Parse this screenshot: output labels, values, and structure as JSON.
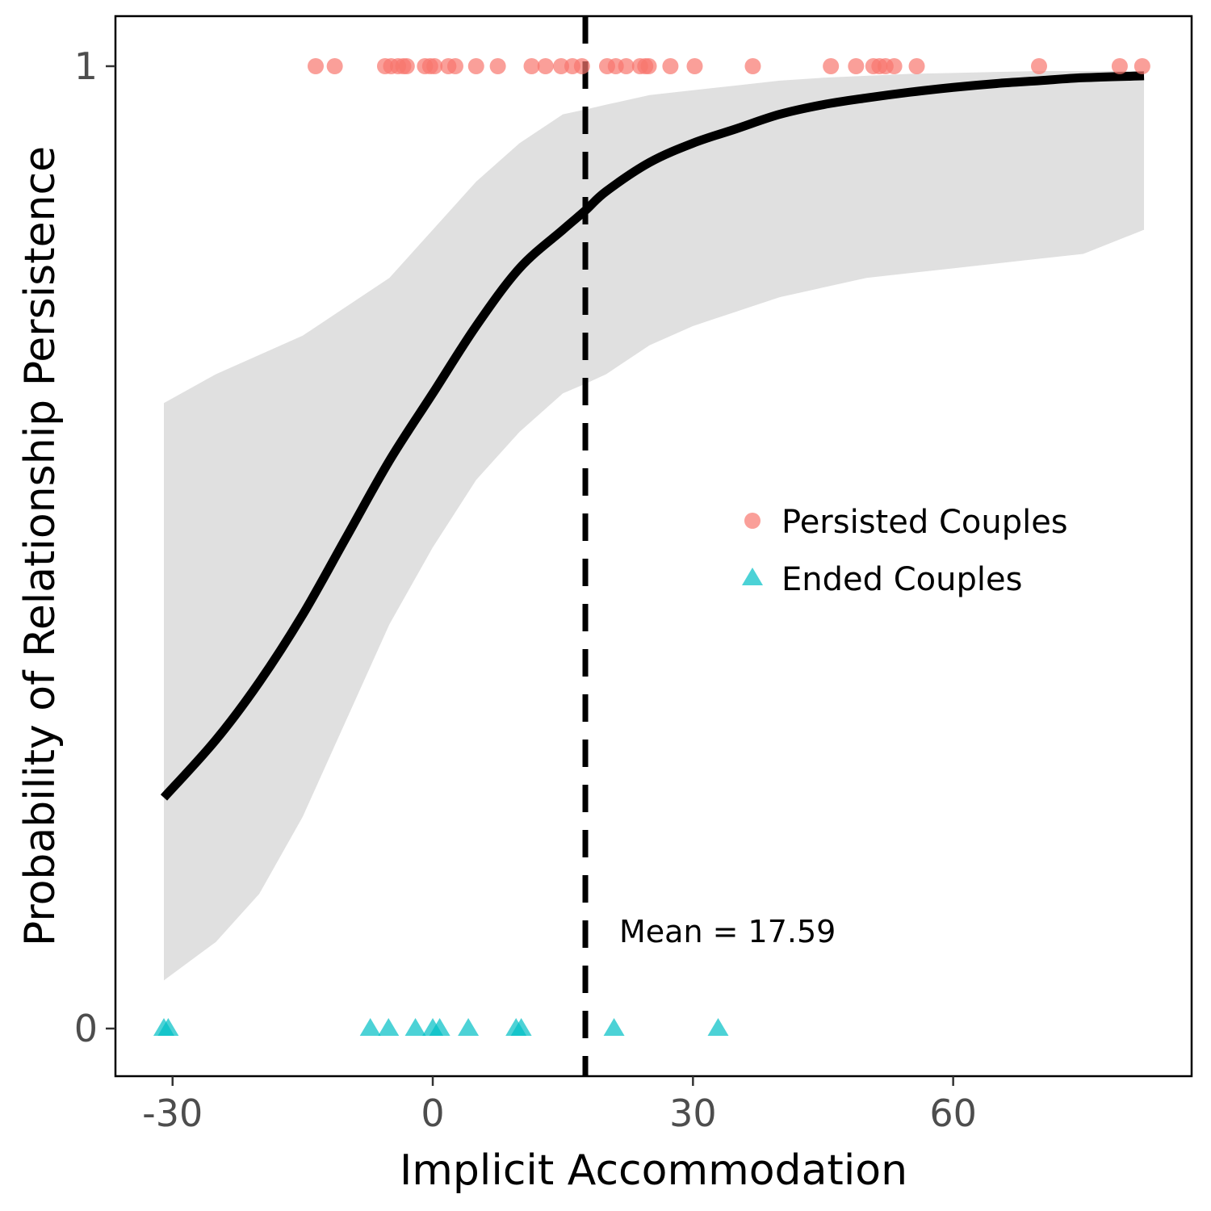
{
  "chart_data": {
    "type": "scatter",
    "xlabel": "Implicit Accommodation",
    "ylabel": "Probability of Relationship Persistence",
    "xlim": [
      -31,
      82
    ],
    "ylim": [
      0,
      1
    ],
    "x_ticks": [
      -30,
      0,
      30,
      60
    ],
    "x_tick_labels": [
      "-30",
      "0",
      "30",
      "60"
    ],
    "y_ticks": [
      0,
      1
    ],
    "y_tick_labels": [
      "0",
      "1"
    ],
    "grid": false,
    "legend": {
      "position": "center-right",
      "entries": [
        {
          "label": "Persisted Couples",
          "color": "#F8766D",
          "shape": "circle"
        },
        {
          "label": "Ended Couples",
          "color": "#00BFC4",
          "shape": "triangle"
        }
      ]
    },
    "series": [
      {
        "name": "Persisted Couples",
        "y": 1,
        "color": "#F8766D",
        "shape": "circle",
        "x": [
          -13.5,
          -11.3,
          -5.5,
          -4.8,
          -4.0,
          -3.4,
          -3.0,
          -0.9,
          -0.3,
          0.2,
          1.8,
          2.6,
          5.0,
          7.5,
          11.4,
          13.0,
          14.8,
          16.1,
          17.2,
          20.1,
          21.1,
          22.3,
          23.9,
          24.5,
          24.9,
          27.4,
          30.2,
          36.9,
          45.9,
          48.8,
          50.8,
          51.5,
          52.2,
          53.2,
          55.8,
          69.9,
          79.2,
          81.8
        ]
      },
      {
        "name": "Ended Couples",
        "y": 0,
        "color": "#00BFC4",
        "shape": "triangle",
        "x": [
          -31.0,
          -30.5,
          -7.2,
          -5.1,
          -2.0,
          0.0,
          0.8,
          4.1,
          9.6,
          10.2,
          20.9,
          32.9
        ]
      }
    ],
    "fit_line": {
      "x": [
        -31,
        -25,
        -20,
        -15,
        -10,
        -5,
        0,
        5,
        10,
        15,
        17.59,
        20,
        25,
        30,
        35,
        40,
        45,
        50,
        55,
        60,
        65,
        70,
        75,
        82
      ],
      "y": [
        0.24,
        0.3,
        0.36,
        0.43,
        0.51,
        0.59,
        0.66,
        0.73,
        0.79,
        0.83,
        0.85,
        0.87,
        0.9,
        0.92,
        0.935,
        0.95,
        0.96,
        0.967,
        0.973,
        0.978,
        0.982,
        0.985,
        0.988,
        0.99
      ]
    },
    "confidence_band": {
      "x": [
        -31,
        -25,
        -20,
        -15,
        -10,
        -5,
        0,
        5,
        10,
        15,
        17.59,
        20,
        25,
        30,
        35,
        40,
        45,
        50,
        55,
        60,
        65,
        70,
        75,
        82
      ],
      "lower": [
        0.05,
        0.09,
        0.14,
        0.22,
        0.32,
        0.42,
        0.5,
        0.57,
        0.62,
        0.66,
        0.67,
        0.68,
        0.71,
        0.73,
        0.745,
        0.76,
        0.77,
        0.78,
        0.785,
        0.79,
        0.795,
        0.8,
        0.805,
        0.83
      ],
      "upper": [
        0.65,
        0.68,
        0.7,
        0.72,
        0.75,
        0.78,
        0.83,
        0.88,
        0.92,
        0.95,
        0.955,
        0.96,
        0.97,
        0.975,
        0.98,
        0.985,
        0.988,
        0.99,
        0.992,
        0.993,
        0.994,
        0.995,
        0.995,
        0.995
      ]
    },
    "reference_line": {
      "x": 17.59,
      "style": "dashed"
    },
    "annotations": [
      {
        "text": "Mean = 17.59",
        "x": 21.5,
        "y": 0.1
      }
    ]
  }
}
